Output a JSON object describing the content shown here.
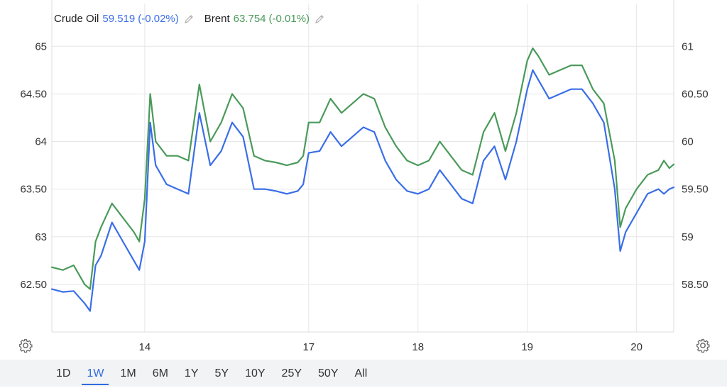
{
  "legend": [
    {
      "name": "Crude Oil",
      "value": "59.519",
      "change": "(-0.02%)",
      "color": "#3a6ee8"
    },
    {
      "name": "Brent",
      "value": "63.754",
      "change": "(-0.01%)",
      "color": "#4a9a5a"
    }
  ],
  "range_buttons": [
    "1D",
    "1W",
    "1M",
    "6M",
    "1Y",
    "5Y",
    "10Y",
    "25Y",
    "50Y",
    "All"
  ],
  "active_range": "1W",
  "icons": {
    "settings_left": "gear-icon",
    "settings_right": "gear-icon",
    "edit": "pencil-icon"
  },
  "chart_data": {
    "type": "line",
    "x_tick_labels": [
      "14",
      "17",
      "18",
      "19",
      "20"
    ],
    "x_tick_positions": [
      1.5,
      3,
      4,
      5,
      6
    ],
    "xlim": [
      0.65,
      6.34
    ],
    "left_axis": {
      "ylim": [
        62,
        65.3
      ],
      "ticks": [
        62.5,
        63,
        63.5,
        64,
        64.5,
        65
      ],
      "tick_labels": [
        "62.50",
        "63",
        "63.50",
        "64",
        "64.50",
        "65"
      ]
    },
    "right_axis": {
      "ylim": [
        58,
        61.3
      ],
      "ticks": [
        58.5,
        59,
        59.5,
        60,
        60.5,
        61
      ],
      "tick_labels": [
        "58.50",
        "59",
        "59.50",
        "60",
        "60.50",
        "61"
      ]
    },
    "grid": true,
    "series": [
      {
        "name": "Crude Oil",
        "axis": "right",
        "color": "#3a6ee8",
        "x": [
          0.65,
          0.75,
          0.85,
          0.95,
          1.0,
          1.05,
          1.1,
          1.2,
          1.3,
          1.4,
          1.45,
          1.5,
          1.55,
          1.6,
          1.7,
          1.8,
          1.9,
          2.0,
          2.1,
          2.2,
          2.3,
          2.4,
          2.5,
          2.6,
          2.7,
          2.8,
          2.9,
          2.95,
          3.0,
          3.1,
          3.2,
          3.3,
          3.4,
          3.5,
          3.6,
          3.7,
          3.8,
          3.9,
          4.0,
          4.1,
          4.2,
          4.3,
          4.4,
          4.5,
          4.6,
          4.7,
          4.8,
          4.9,
          5.0,
          5.05,
          5.1,
          5.2,
          5.3,
          5.4,
          5.5,
          5.6,
          5.7,
          5.8,
          5.85,
          5.9,
          6.0,
          6.1,
          6.2,
          6.25,
          6.3,
          6.34
        ],
        "y": [
          58.45,
          58.42,
          58.43,
          58.3,
          58.22,
          58.7,
          58.8,
          59.15,
          58.95,
          58.75,
          58.65,
          58.95,
          60.2,
          59.75,
          59.55,
          59.5,
          59.45,
          60.3,
          59.75,
          59.9,
          60.2,
          60.05,
          59.5,
          59.5,
          59.48,
          59.45,
          59.48,
          59.55,
          59.88,
          59.9,
          60.1,
          59.95,
          60.05,
          60.15,
          60.1,
          59.8,
          59.6,
          59.48,
          59.45,
          59.5,
          59.7,
          59.55,
          59.4,
          59.35,
          59.8,
          59.95,
          59.6,
          60.0,
          60.55,
          60.75,
          60.65,
          60.45,
          60.5,
          60.55,
          60.55,
          60.4,
          60.2,
          59.5,
          58.85,
          59.05,
          59.25,
          59.45,
          59.5,
          59.45,
          59.5,
          59.52
        ]
      },
      {
        "name": "Brent",
        "axis": "left",
        "color": "#4a9a5a",
        "x": [
          0.65,
          0.75,
          0.85,
          0.95,
          1.0,
          1.05,
          1.1,
          1.2,
          1.3,
          1.4,
          1.45,
          1.5,
          1.55,
          1.6,
          1.7,
          1.8,
          1.9,
          2.0,
          2.1,
          2.2,
          2.3,
          2.4,
          2.5,
          2.6,
          2.7,
          2.8,
          2.9,
          2.95,
          3.0,
          3.1,
          3.2,
          3.3,
          3.4,
          3.5,
          3.6,
          3.7,
          3.8,
          3.9,
          4.0,
          4.1,
          4.2,
          4.3,
          4.4,
          4.5,
          4.6,
          4.7,
          4.8,
          4.9,
          5.0,
          5.05,
          5.1,
          5.2,
          5.3,
          5.4,
          5.5,
          5.6,
          5.7,
          5.8,
          5.85,
          5.9,
          6.0,
          6.1,
          6.2,
          6.25,
          6.3,
          6.34
        ],
        "y": [
          62.68,
          62.65,
          62.7,
          62.5,
          62.45,
          62.95,
          63.1,
          63.35,
          63.2,
          63.05,
          62.95,
          63.4,
          64.5,
          64.0,
          63.85,
          63.85,
          63.8,
          64.6,
          64.0,
          64.2,
          64.5,
          64.35,
          63.85,
          63.8,
          63.78,
          63.75,
          63.78,
          63.85,
          64.2,
          64.2,
          64.45,
          64.3,
          64.4,
          64.5,
          64.45,
          64.15,
          63.95,
          63.8,
          63.75,
          63.8,
          64.0,
          63.85,
          63.7,
          63.65,
          64.1,
          64.3,
          63.9,
          64.3,
          64.85,
          64.98,
          64.9,
          64.7,
          64.75,
          64.8,
          64.8,
          64.55,
          64.4,
          63.8,
          63.1,
          63.3,
          63.5,
          63.65,
          63.7,
          63.8,
          63.72,
          63.76
        ]
      }
    ]
  }
}
